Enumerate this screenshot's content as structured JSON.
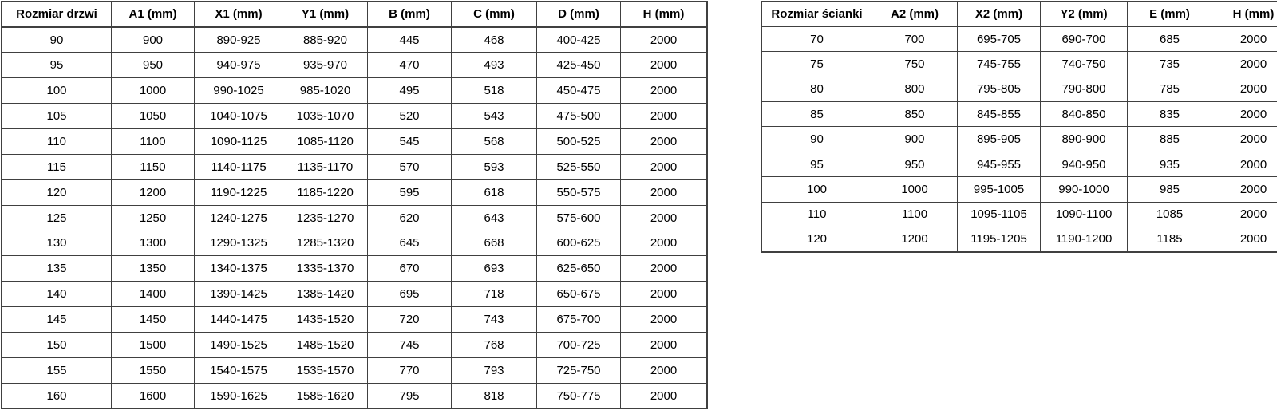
{
  "colors": {
    "background": "#ffffff",
    "border": "#404040",
    "text": "#000000"
  },
  "tables": [
    {
      "id": "door-size-table",
      "headers": [
        "Rozmiar drzwi",
        "A1 (mm)",
        "X1 (mm)",
        "Y1 (mm)",
        "B (mm)",
        "C (mm)",
        "D (mm)",
        "H (mm)"
      ],
      "rows": [
        [
          "90",
          "900",
          "890-925",
          "885-920",
          "445",
          "468",
          "400-425",
          "2000"
        ],
        [
          "95",
          "950",
          "940-975",
          "935-970",
          "470",
          "493",
          "425-450",
          "2000"
        ],
        [
          "100",
          "1000",
          "990-1025",
          "985-1020",
          "495",
          "518",
          "450-475",
          "2000"
        ],
        [
          "105",
          "1050",
          "1040-1075",
          "1035-1070",
          "520",
          "543",
          "475-500",
          "2000"
        ],
        [
          "110",
          "1100",
          "1090-1125",
          "1085-1120",
          "545",
          "568",
          "500-525",
          "2000"
        ],
        [
          "115",
          "1150",
          "1140-1175",
          "1135-1170",
          "570",
          "593",
          "525-550",
          "2000"
        ],
        [
          "120",
          "1200",
          "1190-1225",
          "1185-1220",
          "595",
          "618",
          "550-575",
          "2000"
        ],
        [
          "125",
          "1250",
          "1240-1275",
          "1235-1270",
          "620",
          "643",
          "575-600",
          "2000"
        ],
        [
          "130",
          "1300",
          "1290-1325",
          "1285-1320",
          "645",
          "668",
          "600-625",
          "2000"
        ],
        [
          "135",
          "1350",
          "1340-1375",
          "1335-1370",
          "670",
          "693",
          "625-650",
          "2000"
        ],
        [
          "140",
          "1400",
          "1390-1425",
          "1385-1420",
          "695",
          "718",
          "650-675",
          "2000"
        ],
        [
          "145",
          "1450",
          "1440-1475",
          "1435-1520",
          "720",
          "743",
          "675-700",
          "2000"
        ],
        [
          "150",
          "1500",
          "1490-1525",
          "1485-1520",
          "745",
          "768",
          "700-725",
          "2000"
        ],
        [
          "155",
          "1550",
          "1540-1575",
          "1535-1570",
          "770",
          "793",
          "725-750",
          "2000"
        ],
        [
          "160",
          "1600",
          "1590-1625",
          "1585-1620",
          "795",
          "818",
          "750-775",
          "2000"
        ]
      ]
    },
    {
      "id": "wall-size-table",
      "headers": [
        "Rozmiar ścianki",
        "A2 (mm)",
        "X2 (mm)",
        "Y2 (mm)",
        "E (mm)",
        "H (mm)"
      ],
      "rows": [
        [
          "70",
          "700",
          "695-705",
          "690-700",
          "685",
          "2000"
        ],
        [
          "75",
          "750",
          "745-755",
          "740-750",
          "735",
          "2000"
        ],
        [
          "80",
          "800",
          "795-805",
          "790-800",
          "785",
          "2000"
        ],
        [
          "85",
          "850",
          "845-855",
          "840-850",
          "835",
          "2000"
        ],
        [
          "90",
          "900",
          "895-905",
          "890-900",
          "885",
          "2000"
        ],
        [
          "95",
          "950",
          "945-955",
          "940-950",
          "935",
          "2000"
        ],
        [
          "100",
          "1000",
          "995-1005",
          "990-1000",
          "985",
          "2000"
        ],
        [
          "110",
          "1100",
          "1095-1105",
          "1090-1100",
          "1085",
          "2000"
        ],
        [
          "120",
          "1200",
          "1195-1205",
          "1190-1200",
          "1185",
          "2000"
        ]
      ]
    }
  ]
}
